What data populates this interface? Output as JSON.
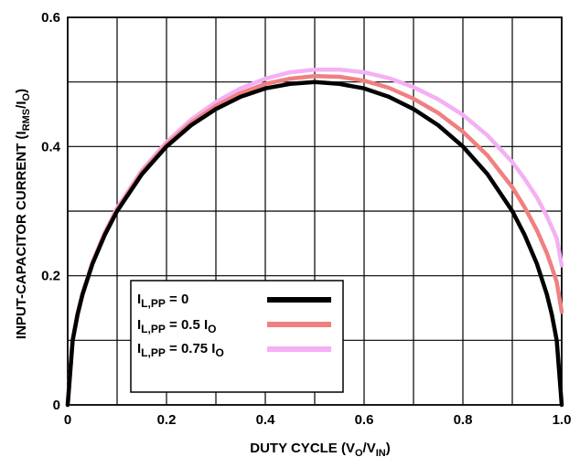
{
  "chart_data": {
    "type": "line",
    "title": "",
    "xlabel": "DUTY CYCLE (V",
    "xlabel_sub1": "O",
    "xlabel_mid": "/V",
    "xlabel_sub2": "IN",
    "xlabel_end": ")",
    "ylabel": "INPUT-CAPACITOR CURRENT (I",
    "ylabel_sub1": "RMS",
    "ylabel_mid": "/I",
    "ylabel_sub2": "O",
    "ylabel_end": ")",
    "xlim": [
      0,
      1.0
    ],
    "ylim": [
      0,
      0.6
    ],
    "x_ticks": [
      "0",
      "0.2",
      "0.4",
      "0.6",
      "0.8",
      "1.0"
    ],
    "y_ticks": [
      "0",
      "0.2",
      "0.4",
      "0.6"
    ],
    "grid": true,
    "legend_position": "bottom-left",
    "x": [
      0,
      0.01,
      0.02,
      0.03,
      0.05,
      0.075,
      0.1,
      0.15,
      0.2,
      0.25,
      0.3,
      0.35,
      0.4,
      0.45,
      0.5,
      0.55,
      0.6,
      0.65,
      0.7,
      0.75,
      0.8,
      0.85,
      0.9,
      0.925,
      0.95,
      0.97,
      0.98,
      0.99,
      1.0
    ],
    "series": [
      {
        "label_main": "I",
        "label_sub": "L,PP",
        "label_rest": " = 0",
        "color": "#000000",
        "values": [
          0,
          0.0995,
          0.14,
          0.171,
          0.218,
          0.263,
          0.3,
          0.357,
          0.4,
          0.433,
          0.458,
          0.477,
          0.49,
          0.497,
          0.5,
          0.497,
          0.49,
          0.477,
          0.458,
          0.433,
          0.4,
          0.357,
          0.3,
          0.263,
          0.218,
          0.171,
          0.14,
          0.0995,
          0
        ]
      },
      {
        "label_main": "I",
        "label_sub": "L,PP",
        "label_rest": " = 0.5 I",
        "label_sub2": "O",
        "color": "#f08080",
        "values": [
          0,
          0.1,
          0.141,
          0.172,
          0.219,
          0.265,
          0.302,
          0.36,
          0.403,
          0.437,
          0.463,
          0.483,
          0.497,
          0.505,
          0.509,
          0.508,
          0.502,
          0.491,
          0.474,
          0.452,
          0.423,
          0.386,
          0.337,
          0.306,
          0.27,
          0.235,
          0.213,
          0.19,
          0.144
        ]
      },
      {
        "label_main": "I",
        "label_sub": "L,PP",
        "label_rest": " = 0.75 I",
        "label_sub2": "O",
        "color": "#f4b0f4",
        "values": [
          0,
          0.101,
          0.142,
          0.173,
          0.221,
          0.267,
          0.305,
          0.363,
          0.407,
          0.442,
          0.469,
          0.49,
          0.505,
          0.515,
          0.519,
          0.519,
          0.515,
          0.506,
          0.492,
          0.473,
          0.449,
          0.417,
          0.376,
          0.35,
          0.321,
          0.292,
          0.275,
          0.258,
          0.216
        ]
      }
    ]
  }
}
